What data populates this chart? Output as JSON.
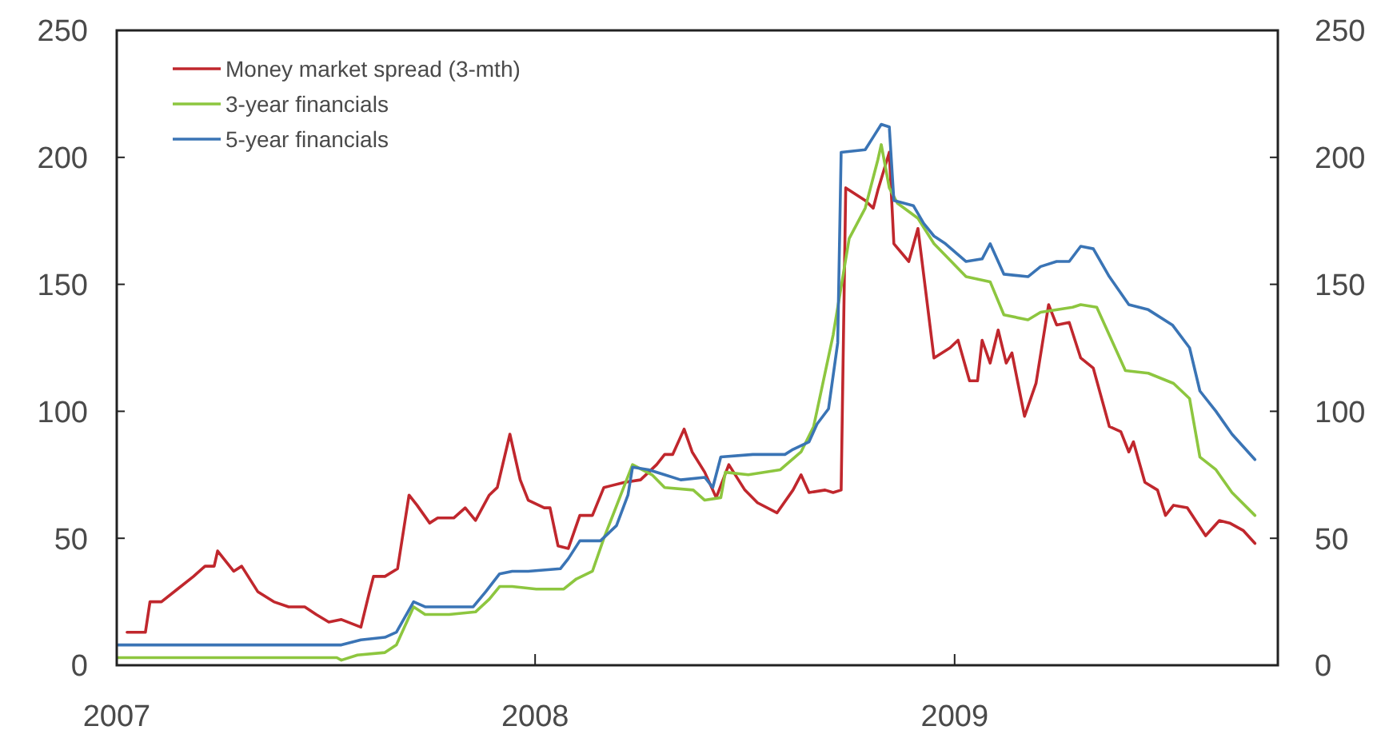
{
  "chart_data": {
    "type": "line",
    "xlim": [
      "2007-01-01",
      "2009-10-10"
    ],
    "xticks": [
      {
        "value": "2007-01-01",
        "label": "2007"
      },
      {
        "value": "2008-01-01",
        "label": "2008"
      },
      {
        "value": "2009-01-01",
        "label": "2009"
      }
    ],
    "ylim": [
      0,
      250
    ],
    "yticks": [
      0,
      50,
      100,
      150,
      200,
      250
    ],
    "y2lim": [
      0,
      250
    ],
    "y2ticks": [
      0,
      50,
      100,
      150,
      200,
      250
    ],
    "grid": false,
    "legend": "top left",
    "line_style": "solid",
    "marker": "none",
    "series": [
      {
        "name": "Money market spread (3-mth)",
        "color": "#c0272d",
        "x": [
          "2007-01-10",
          "2007-01-26",
          "2007-01-30",
          "2007-02-09",
          "2007-02-23",
          "2007-03-09",
          "2007-03-19",
          "2007-03-27",
          "2007-03-30",
          "2007-04-13",
          "2007-04-20",
          "2007-05-04",
          "2007-05-18",
          "2007-05-31",
          "2007-06-14",
          "2007-06-24",
          "2007-07-05",
          "2007-07-16",
          "2007-08-02",
          "2007-08-09",
          "2007-08-13",
          "2007-08-23",
          "2007-09-03",
          "2007-09-13",
          "2007-09-20",
          "2007-10-01",
          "2007-10-08",
          "2007-10-22",
          "2007-11-01",
          "2007-11-10",
          "2007-11-22",
          "2007-11-29",
          "2007-12-10",
          "2007-12-19",
          "2007-12-26",
          "2008-01-09",
          "2008-01-14",
          "2008-01-21",
          "2008-01-30",
          "2008-02-09",
          "2008-02-20",
          "2008-03-01",
          "2008-03-19",
          "2008-04-02",
          "2008-04-09",
          "2008-04-16",
          "2008-04-23",
          "2008-04-30",
          "2008-05-10",
          "2008-05-17",
          "2008-05-28",
          "2008-06-07",
          "2008-06-18",
          "2008-07-02",
          "2008-07-13",
          "2008-07-30",
          "2008-08-13",
          "2008-08-20",
          "2008-08-27",
          "2008-09-10",
          "2008-09-17",
          "2008-09-24",
          "2008-09-28",
          "2008-10-15",
          "2008-10-22",
          "2008-10-26",
          "2008-11-05",
          "2008-11-09",
          "2008-11-22",
          "2008-11-30",
          "2008-12-14",
          "2008-12-28",
          "2009-01-04",
          "2009-01-14",
          "2009-01-21",
          "2009-01-25",
          "2009-02-01",
          "2009-02-08",
          "2009-02-15",
          "2009-02-20",
          "2009-03-03",
          "2009-03-13",
          "2009-03-24",
          "2009-03-31",
          "2009-04-11",
          "2009-04-21",
          "2009-05-02",
          "2009-05-16",
          "2009-05-26",
          "2009-06-02",
          "2009-06-06",
          "2009-06-16",
          "2009-06-27",
          "2009-07-04",
          "2009-07-11",
          "2009-07-23",
          "2009-08-08",
          "2009-08-20",
          "2009-08-29",
          "2009-09-10",
          "2009-09-20"
        ],
        "values": [
          13,
          13,
          25,
          25,
          30,
          35,
          39,
          39,
          45,
          37,
          39,
          29,
          25,
          23,
          23,
          20,
          17,
          18,
          15,
          28,
          35,
          35,
          38,
          67,
          63,
          56,
          58,
          58,
          62,
          57,
          67,
          70,
          91,
          73,
          65,
          62,
          62,
          47,
          46,
          59,
          59,
          70,
          72,
          73,
          76,
          79,
          83,
          83,
          93,
          84,
          76,
          66,
          79,
          69,
          64,
          60,
          69,
          75,
          68,
          69,
          68,
          69,
          188,
          183,
          180,
          187,
          202,
          166,
          159,
          172,
          121,
          125,
          128,
          112,
          112,
          128,
          119,
          132,
          119,
          123,
          98,
          111,
          142,
          134,
          135,
          121,
          117,
          94,
          92,
          84,
          88,
          72,
          69,
          59,
          63,
          62,
          51,
          57,
          56,
          53,
          48
        ]
      },
      {
        "name": "3-year financials",
        "color": "#8dc63f",
        "x": [
          "2007-01-02",
          "2007-07-12",
          "2007-07-16",
          "2007-07-30",
          "2007-08-23",
          "2007-09-02",
          "2007-09-17",
          "2007-09-27",
          "2007-10-18",
          "2007-11-10",
          "2007-11-22",
          "2007-12-01",
          "2007-12-12",
          "2008-01-02",
          "2008-01-26",
          "2008-02-06",
          "2008-02-20",
          "2008-03-01",
          "2008-03-26",
          "2008-04-12",
          "2008-04-23",
          "2008-05-18",
          "2008-05-28",
          "2008-06-11",
          "2008-06-15",
          "2008-07-05",
          "2008-08-02",
          "2008-08-20",
          "2008-08-31",
          "2008-09-17",
          "2008-10-01",
          "2008-10-15",
          "2008-10-26",
          "2008-10-29",
          "2008-11-05",
          "2008-11-12",
          "2008-11-30",
          "2008-12-14",
          "2009-01-11",
          "2009-02-01",
          "2009-02-13",
          "2009-03-06",
          "2009-03-17",
          "2009-04-14",
          "2009-04-21",
          "2009-05-05",
          "2009-05-30",
          "2009-06-19",
          "2009-07-11",
          "2009-07-25",
          "2009-08-03",
          "2009-08-17",
          "2009-08-31",
          "2009-09-20"
        ],
        "values": [
          3,
          3,
          2,
          4,
          5,
          8,
          23,
          20,
          20,
          21,
          26,
          31,
          31,
          30,
          30,
          34,
          37,
          50,
          79,
          75,
          70,
          69,
          65,
          66,
          76,
          75,
          77,
          84,
          94,
          130,
          168,
          180,
          199,
          205,
          188,
          182,
          176,
          166,
          153,
          151,
          138,
          136,
          139,
          141,
          142,
          141,
          116,
          115,
          111,
          105,
          82,
          77,
          68,
          59
        ]
      },
      {
        "name": "5-year financials",
        "color": "#3a74b5",
        "x": [
          "2007-01-02",
          "2007-07-16",
          "2007-08-02",
          "2007-08-23",
          "2007-09-02",
          "2007-09-17",
          "2007-09-27",
          "2007-11-08",
          "2007-11-19",
          "2007-12-01",
          "2007-12-12",
          "2007-12-26",
          "2008-01-23",
          "2008-01-30",
          "2008-02-09",
          "2008-02-27",
          "2008-03-12",
          "2008-03-22",
          "2008-03-26",
          "2008-04-09",
          "2008-04-23",
          "2008-05-07",
          "2008-05-28",
          "2008-06-04",
          "2008-06-11",
          "2008-07-09",
          "2008-08-06",
          "2008-08-13",
          "2008-08-27",
          "2008-09-03",
          "2008-09-13",
          "2008-09-21",
          "2008-09-24",
          "2008-10-15",
          "2008-10-22",
          "2008-10-29",
          "2008-11-05",
          "2008-11-09",
          "2008-11-26",
          "2008-12-05",
          "2008-12-14",
          "2008-12-24",
          "2009-01-11",
          "2009-01-25",
          "2009-02-01",
          "2009-02-13",
          "2009-03-06",
          "2009-03-17",
          "2009-03-31",
          "2009-04-11",
          "2009-04-21",
          "2009-05-02",
          "2009-05-16",
          "2009-06-02",
          "2009-06-19",
          "2009-07-10",
          "2009-07-25",
          "2009-08-03",
          "2009-08-17",
          "2009-08-31",
          "2009-09-20"
        ],
        "values": [
          8,
          8,
          10,
          11,
          13,
          25,
          23,
          23,
          29,
          36,
          37,
          37,
          38,
          42,
          49,
          49,
          55,
          67,
          78,
          77,
          75,
          73,
          74,
          70,
          82,
          83,
          83,
          85,
          88,
          95,
          101,
          127,
          202,
          203,
          208,
          213,
          212,
          183,
          181,
          174,
          169,
          166,
          159,
          160,
          166,
          154,
          153,
          157,
          159,
          159,
          165,
          164,
          153,
          142,
          140,
          134,
          125,
          108,
          100,
          91,
          81
        ]
      }
    ]
  }
}
